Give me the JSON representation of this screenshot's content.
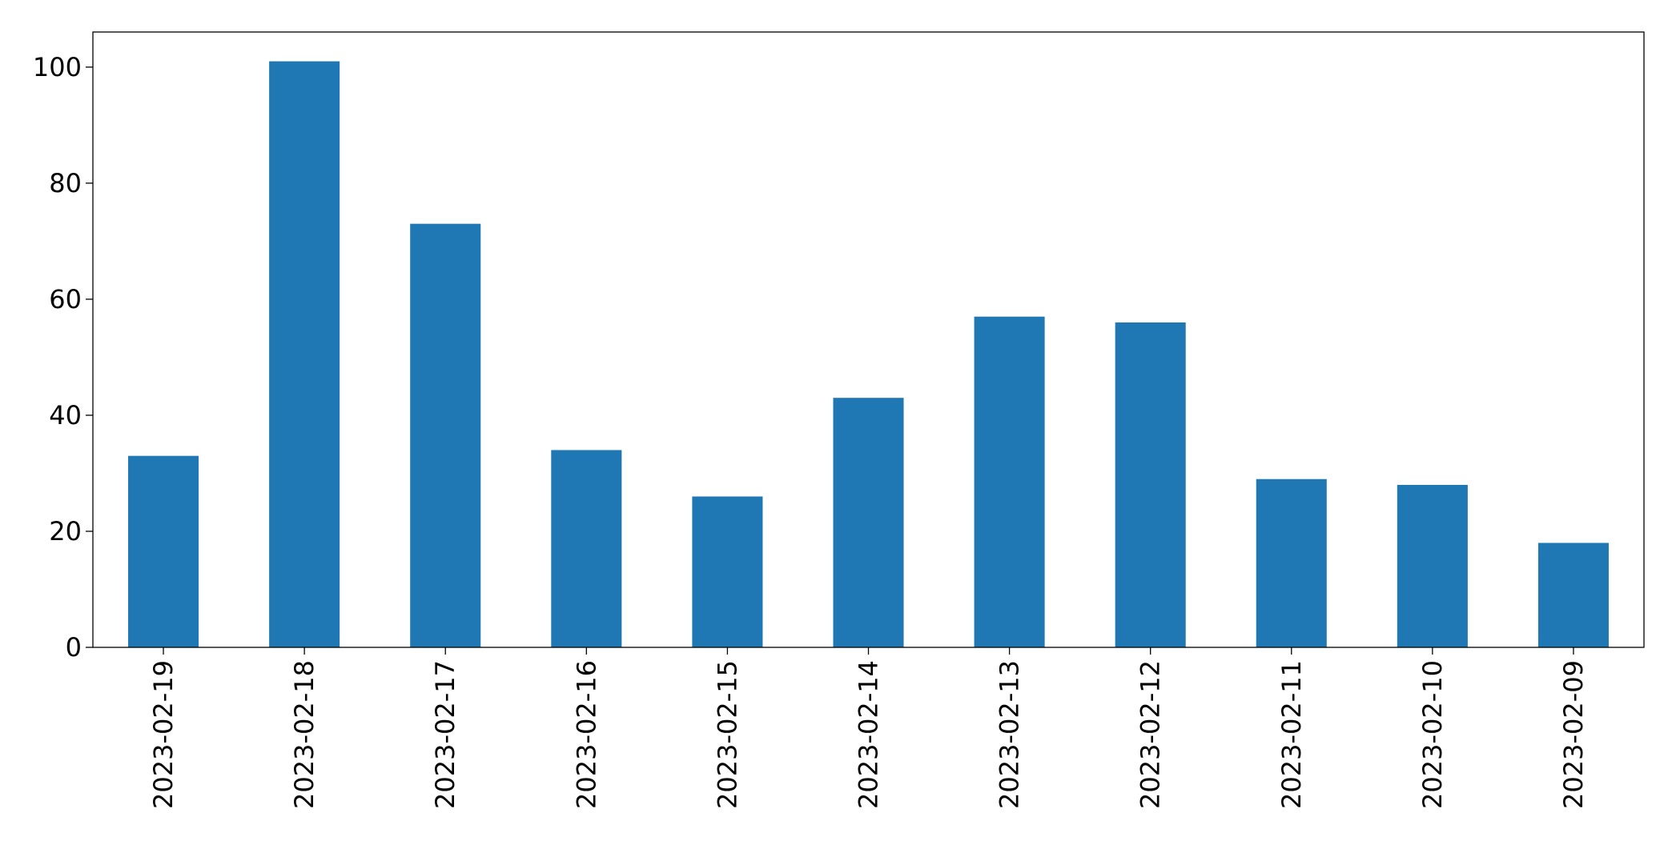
{
  "chart_data": {
    "type": "bar",
    "categories": [
      "2023-02-19",
      "2023-02-18",
      "2023-02-17",
      "2023-02-16",
      "2023-02-15",
      "2023-02-14",
      "2023-02-13",
      "2023-02-12",
      "2023-02-11",
      "2023-02-10",
      "2023-02-09"
    ],
    "values": [
      33,
      101,
      73,
      34,
      26,
      43,
      57,
      56,
      29,
      28,
      18
    ],
    "color": "#1f77b4",
    "ylim": [
      0,
      106.05
    ],
    "yticks": [
      0,
      20,
      40,
      60,
      80,
      100
    ],
    "grid": false
  }
}
